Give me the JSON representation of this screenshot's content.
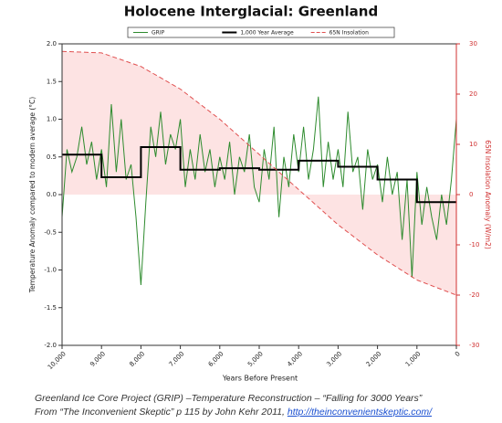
{
  "chart_data": {
    "type": "line",
    "title": "Holocene Interglacial:  Greenland",
    "xlabel": "Years Before Present",
    "ylabel": "Temperature Anomaly compared to modern average (°C)",
    "y2label": "65N Insolation Anomaly (W/m2)",
    "xlim": [
      10000,
      0
    ],
    "xticks": [
      {
        "value": 10000,
        "label": "10,000"
      },
      {
        "value": 9000,
        "label": "9,000"
      },
      {
        "value": 8000,
        "label": "8,000"
      },
      {
        "value": 7000,
        "label": "7,000"
      },
      {
        "value": 6000,
        "label": "6,000"
      },
      {
        "value": 5000,
        "label": "5,000"
      },
      {
        "value": 4000,
        "label": "4,000"
      },
      {
        "value": 3000,
        "label": "3,000"
      },
      {
        "value": 2000,
        "label": "2,000"
      },
      {
        "value": 1000,
        "label": "1,000"
      },
      0
    ],
    "ylim": [
      -2,
      2
    ],
    "yticks": [
      {
        "value": -2,
        "label": "-2.0"
      },
      -1.5,
      {
        "value": -1,
        "label": "-1.0"
      },
      -0.5,
      {
        "value": 0,
        "label": "0.0"
      },
      0.5,
      {
        "value": 1,
        "label": "1.0"
      },
      1.5,
      {
        "value": 2,
        "label": "2.0"
      }
    ],
    "y2lim": [
      -30,
      30
    ],
    "y2ticks": [
      -30,
      -20,
      -10,
      0,
      10,
      20,
      30
    ],
    "y2color": "#d03030",
    "series": [
      {
        "name": "GRIP",
        "color": "#2e8b2e",
        "width": 1,
        "x": [
          10000,
          9875,
          9750,
          9625,
          9500,
          9375,
          9250,
          9125,
          9000,
          8875,
          8750,
          8625,
          8500,
          8375,
          8250,
          8125,
          8000,
          7875,
          7750,
          7625,
          7500,
          7375,
          7250,
          7125,
          7000,
          6875,
          6750,
          6625,
          6500,
          6375,
          6250,
          6125,
          6000,
          5875,
          5750,
          5625,
          5500,
          5375,
          5250,
          5125,
          5000,
          4875,
          4750,
          4625,
          4500,
          4375,
          4250,
          4125,
          4000,
          3875,
          3750,
          3625,
          3500,
          3375,
          3250,
          3125,
          3000,
          2875,
          2750,
          2625,
          2500,
          2375,
          2250,
          2125,
          2000,
          1875,
          1750,
          1625,
          1500,
          1375,
          1250,
          1125,
          1000,
          875,
          750,
          625,
          500,
          375,
          250,
          125,
          0
        ],
        "values": [
          -0.3,
          0.6,
          0.3,
          0.5,
          0.9,
          0.4,
          0.7,
          0.2,
          0.6,
          0.1,
          1.2,
          0.3,
          1.0,
          0.2,
          0.4,
          -0.3,
          -1.2,
          -0.1,
          0.9,
          0.5,
          1.1,
          0.4,
          0.8,
          0.6,
          1.0,
          0.1,
          0.6,
          0.2,
          0.8,
          0.3,
          0.6,
          0.1,
          0.5,
          0.2,
          0.7,
          0.0,
          0.5,
          0.3,
          0.8,
          0.1,
          -0.1,
          0.6,
          0.2,
          0.9,
          -0.3,
          0.5,
          0.1,
          0.8,
          0.3,
          0.9,
          0.2,
          0.6,
          1.3,
          0.1,
          0.7,
          0.2,
          0.6,
          0.1,
          1.1,
          0.3,
          0.5,
          -0.2,
          0.6,
          0.2,
          0.4,
          -0.1,
          0.5,
          0.0,
          0.3,
          -0.6,
          0.2,
          -1.1,
          0.3,
          -0.4,
          0.1,
          -0.3,
          -0.6,
          0.0,
          -0.4,
          0.2,
          1.0
        ]
      },
      {
        "name": "1,000 Year Average",
        "color": "#000000",
        "width": 2,
        "x": [
          10000,
          9000,
          9000,
          8000,
          8000,
          7000,
          7000,
          6000,
          6000,
          5000,
          5000,
          4000,
          4000,
          3000,
          3000,
          2000,
          2000,
          1000,
          1000,
          0
        ],
        "values": [
          0.53,
          0.53,
          0.23,
          0.23,
          0.63,
          0.63,
          0.33,
          0.33,
          0.35,
          0.35,
          0.33,
          0.33,
          0.45,
          0.45,
          0.37,
          0.37,
          0.2,
          0.2,
          -0.1,
          -0.1
        ]
      },
      {
        "name": "65N Insolation",
        "color": "#e05050",
        "width": 1,
        "dashed": true,
        "fill": "#fde3e3",
        "axis": "y2",
        "x": [
          10000,
          9000,
          8000,
          7000,
          6000,
          5000,
          4000,
          3000,
          2000,
          1000,
          0
        ],
        "values": [
          28.5,
          28.2,
          25.5,
          21,
          15,
          8,
          1,
          -6,
          -12,
          -17,
          -20
        ]
      }
    ],
    "caption": {
      "line1": "Greenland Ice Core Project (GRIP) –Temperature Reconstruction – “Falling for 3000 Years”",
      "line2": "From “The Inconvenient Skeptic” p 115 by John Kehr 2011, ",
      "link": "http://theinconvenientskeptic.com/"
    }
  }
}
